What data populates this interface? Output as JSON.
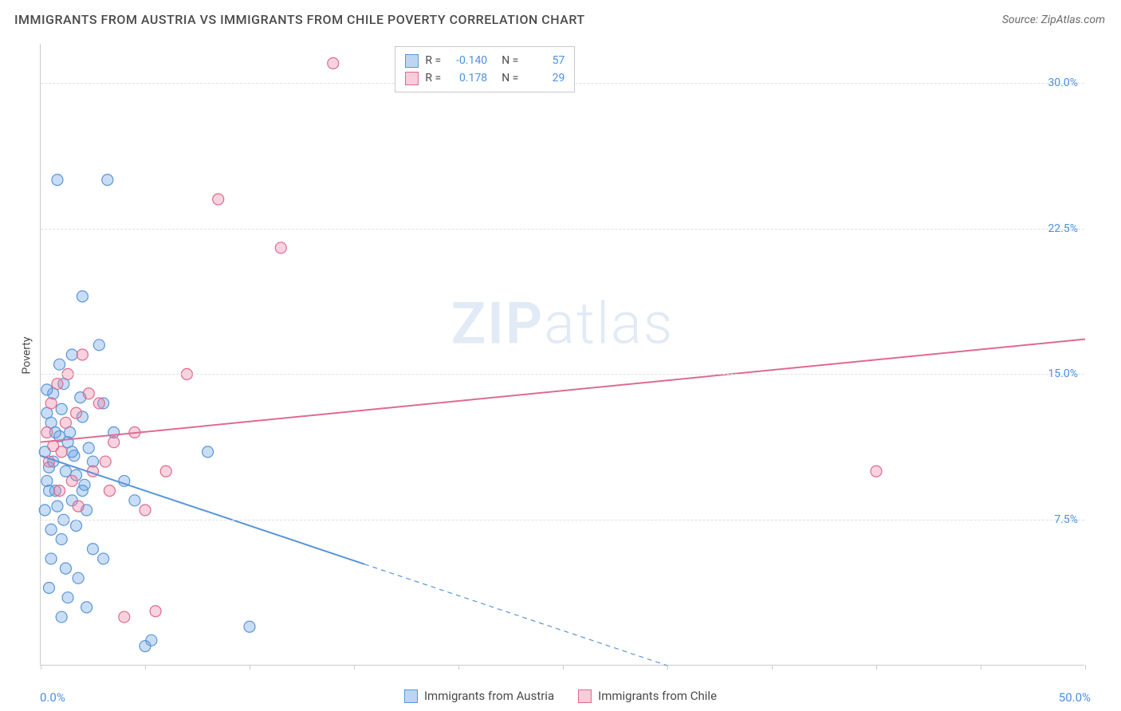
{
  "title": "IMMIGRANTS FROM AUSTRIA VS IMMIGRANTS FROM CHILE POVERTY CORRELATION CHART",
  "source": "Source: ZipAtlas.com",
  "ylabel": "Poverty",
  "watermark_a": "ZIP",
  "watermark_b": "atlas",
  "chart": {
    "type": "scatter-with-regression",
    "xlim": [
      0,
      50
    ],
    "ylim": [
      0,
      32
    ],
    "x_ticks_minor_step": 5,
    "y_gridlines": [
      7.5,
      15.0,
      22.5,
      30.0
    ],
    "y_tick_labels": [
      "7.5%",
      "15.0%",
      "22.5%",
      "30.0%"
    ],
    "x_axis_labels": [
      {
        "pos": 0,
        "text": "0.0%"
      },
      {
        "pos": 50,
        "text": "50.0%"
      }
    ],
    "background_color": "#ffffff",
    "grid_color": "#e0e0e0",
    "axis_color": "#cccccc",
    "label_color": "#4a4a4a",
    "value_color": "#4a90e2",
    "marker_radius": 7,
    "marker_stroke_width": 1.2,
    "line_width": 2
  },
  "series": [
    {
      "name": "Immigrants from Austria",
      "label": "Immigrants from Austria",
      "fill": "rgba(100, 160, 230, 0.35)",
      "stroke": "#5a95d6",
      "swatch_fill": "#bcd6f2",
      "swatch_border": "#5a95d6",
      "R": "-0.140",
      "N": "57",
      "regression": {
        "x1": 0,
        "y1": 10.8,
        "x_solid_end": 15.5,
        "x2": 30,
        "y2": 0
      },
      "points": [
        {
          "x": 0.2,
          "y": 11.0
        },
        {
          "x": 0.3,
          "y": 9.5
        },
        {
          "x": 0.5,
          "y": 12.5
        },
        {
          "x": 0.4,
          "y": 10.2
        },
        {
          "x": 0.6,
          "y": 14.0
        },
        {
          "x": 0.7,
          "y": 9.0
        },
        {
          "x": 0.8,
          "y": 8.2
        },
        {
          "x": 1.0,
          "y": 13.2
        },
        {
          "x": 1.2,
          "y": 10.0
        },
        {
          "x": 1.5,
          "y": 8.5
        },
        {
          "x": 1.3,
          "y": 11.5
        },
        {
          "x": 1.7,
          "y": 9.8
        },
        {
          "x": 1.0,
          "y": 6.5
        },
        {
          "x": 1.2,
          "y": 5.0
        },
        {
          "x": 0.9,
          "y": 15.5
        },
        {
          "x": 2.0,
          "y": 9.0
        },
        {
          "x": 2.2,
          "y": 8.0
        },
        {
          "x": 2.5,
          "y": 10.5
        },
        {
          "x": 0.5,
          "y": 7.0
        },
        {
          "x": 3.0,
          "y": 13.5
        },
        {
          "x": 0.8,
          "y": 25.0
        },
        {
          "x": 3.2,
          "y": 25.0
        },
        {
          "x": 2.0,
          "y": 19.0
        },
        {
          "x": 1.5,
          "y": 16.0
        },
        {
          "x": 2.8,
          "y": 16.5
        },
        {
          "x": 3.5,
          "y": 12.0
        },
        {
          "x": 4.0,
          "y": 9.5
        },
        {
          "x": 4.5,
          "y": 8.5
        },
        {
          "x": 1.8,
          "y": 4.5
        },
        {
          "x": 2.2,
          "y": 3.0
        },
        {
          "x": 3.0,
          "y": 5.5
        },
        {
          "x": 8.0,
          "y": 11.0
        },
        {
          "x": 5.0,
          "y": 1.0
        },
        {
          "x": 5.3,
          "y": 1.3
        },
        {
          "x": 10.0,
          "y": 2.0
        },
        {
          "x": 1.0,
          "y": 2.5
        },
        {
          "x": 1.3,
          "y": 3.5
        },
        {
          "x": 0.4,
          "y": 4.0
        },
        {
          "x": 2.5,
          "y": 6.0
        },
        {
          "x": 2.0,
          "y": 12.8
        },
        {
          "x": 0.2,
          "y": 8.0
        },
        {
          "x": 0.3,
          "y": 13.0
        },
        {
          "x": 0.6,
          "y": 10.5
        },
        {
          "x": 1.1,
          "y": 14.5
        },
        {
          "x": 1.4,
          "y": 12.0
        },
        {
          "x": 0.9,
          "y": 11.8
        },
        {
          "x": 1.6,
          "y": 10.8
        },
        {
          "x": 2.3,
          "y": 11.2
        },
        {
          "x": 0.4,
          "y": 9.0
        },
        {
          "x": 0.7,
          "y": 12.0
        },
        {
          "x": 1.9,
          "y": 13.8
        },
        {
          "x": 0.5,
          "y": 5.5
        },
        {
          "x": 1.1,
          "y": 7.5
        },
        {
          "x": 1.7,
          "y": 7.2
        },
        {
          "x": 2.1,
          "y": 9.3
        },
        {
          "x": 0.3,
          "y": 14.2
        },
        {
          "x": 1.5,
          "y": 11.0
        }
      ]
    },
    {
      "name": "Immigrants from Chile",
      "label": "Immigrants from Chile",
      "fill": "rgba(235, 130, 160, 0.35)",
      "stroke": "#de6a92",
      "swatch_fill": "#f6cdd9",
      "swatch_border": "#de6a92",
      "R": "0.178",
      "N": "29",
      "regression": {
        "x1": 0,
        "y1": 11.5,
        "x_solid_end": 50,
        "x2": 50,
        "y2": 16.8
      },
      "points": [
        {
          "x": 0.3,
          "y": 12.0
        },
        {
          "x": 0.5,
          "y": 13.5
        },
        {
          "x": 0.8,
          "y": 14.5
        },
        {
          "x": 1.0,
          "y": 11.0
        },
        {
          "x": 1.3,
          "y": 15.0
        },
        {
          "x": 1.7,
          "y": 13.0
        },
        {
          "x": 2.0,
          "y": 16.0
        },
        {
          "x": 2.5,
          "y": 10.0
        },
        {
          "x": 3.1,
          "y": 10.5
        },
        {
          "x": 3.5,
          "y": 11.5
        },
        {
          "x": 2.8,
          "y": 13.5
        },
        {
          "x": 1.5,
          "y": 9.5
        },
        {
          "x": 5.0,
          "y": 8.0
        },
        {
          "x": 6.0,
          "y": 10.0
        },
        {
          "x": 7.0,
          "y": 15.0
        },
        {
          "x": 4.0,
          "y": 2.5
        },
        {
          "x": 8.5,
          "y": 24.0
        },
        {
          "x": 11.5,
          "y": 21.5
        },
        {
          "x": 14.0,
          "y": 31.0
        },
        {
          "x": 40.0,
          "y": 10.0
        },
        {
          "x": 0.4,
          "y": 10.5
        },
        {
          "x": 0.9,
          "y": 9.0
        },
        {
          "x": 1.2,
          "y": 12.5
        },
        {
          "x": 2.3,
          "y": 14.0
        },
        {
          "x": 0.6,
          "y": 11.3
        },
        {
          "x": 3.3,
          "y": 9.0
        },
        {
          "x": 4.5,
          "y": 12.0
        },
        {
          "x": 5.5,
          "y": 2.8
        },
        {
          "x": 1.8,
          "y": 8.2
        }
      ]
    }
  ],
  "legend_top": {
    "r_label": "R =",
    "n_label": "N ="
  }
}
